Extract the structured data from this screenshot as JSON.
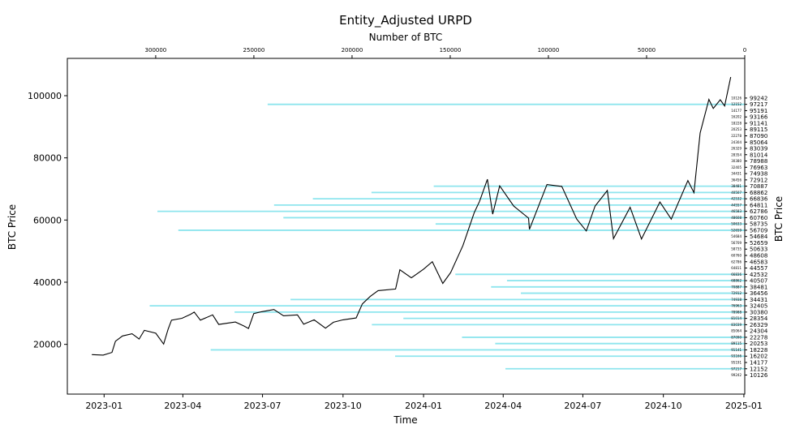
{
  "chart_data": {
    "type": "line",
    "title": "Entity_Adjusted URPD",
    "xlabel": "Time",
    "ylabel": "BTC Price",
    "ylabel_right": "BTC Price",
    "top_xlabel": "Number of BTC",
    "x_ticks": [
      "2023-01",
      "2023-04",
      "2023-07",
      "2023-10",
      "2024-01",
      "2024-04",
      "2024-07",
      "2024-10",
      "2025-01"
    ],
    "x_tick_dates": [
      "2023-01-01",
      "2023-04-01",
      "2023-07-01",
      "2023-10-01",
      "2024-01-01",
      "2024-04-01",
      "2024-07-01",
      "2024-10-01",
      "2025-01-01"
    ],
    "xlim": [
      "2022-11-20",
      "2025-01-02"
    ],
    "ylim": [
      4000,
      112000
    ],
    "y_ticks": [
      "20000",
      "40000",
      "60000",
      "80000",
      "100000"
    ],
    "y_tick_values": [
      20000,
      40000,
      60000,
      80000,
      100000
    ],
    "top_ticks": [
      "300000",
      "250000",
      "200000",
      "150000",
      "100000",
      "50000",
      "0"
    ],
    "top_tick_values": [
      300000,
      250000,
      200000,
      150000,
      100000,
      50000,
      0
    ],
    "top_xlim": [
      345000,
      0
    ],
    "price_series": {
      "name": "BTC Price",
      "color": "#000000",
      "points": [
        [
          "2022-12-18",
          16700
        ],
        [
          "2022-12-31",
          16550
        ],
        [
          "2023-01-10",
          17400
        ],
        [
          "2023-01-14",
          21000
        ],
        [
          "2023-01-22",
          22700
        ],
        [
          "2023-02-02",
          23400
        ],
        [
          "2023-02-10",
          21700
        ],
        [
          "2023-02-16",
          24500
        ],
        [
          "2023-03-01",
          23600
        ],
        [
          "2023-03-10",
          20100
        ],
        [
          "2023-03-15",
          24800
        ],
        [
          "2023-03-19",
          27800
        ],
        [
          "2023-03-31",
          28400
        ],
        [
          "2023-04-10",
          29700
        ],
        [
          "2023-04-14",
          30400
        ],
        [
          "2023-04-21",
          27800
        ],
        [
          "2023-05-05",
          29500
        ],
        [
          "2023-05-12",
          26400
        ],
        [
          "2023-05-31",
          27200
        ],
        [
          "2023-06-10",
          25900
        ],
        [
          "2023-06-15",
          25100
        ],
        [
          "2023-06-21",
          29900
        ],
        [
          "2023-06-30",
          30500
        ],
        [
          "2023-07-14",
          31200
        ],
        [
          "2023-07-25",
          29200
        ],
        [
          "2023-08-10",
          29500
        ],
        [
          "2023-08-17",
          26500
        ],
        [
          "2023-08-29",
          27900
        ],
        [
          "2023-09-11",
          25200
        ],
        [
          "2023-09-20",
          27100
        ],
        [
          "2023-10-01",
          27900
        ],
        [
          "2023-10-16",
          28500
        ],
        [
          "2023-10-23",
          33000
        ],
        [
          "2023-11-01",
          35400
        ],
        [
          "2023-11-10",
          37300
        ],
        [
          "2023-11-30",
          37800
        ],
        [
          "2023-12-05",
          44000
        ],
        [
          "2023-12-18",
          41400
        ],
        [
          "2024-01-01",
          44200
        ],
        [
          "2024-01-11",
          46600
        ],
        [
          "2024-01-23",
          39600
        ],
        [
          "2024-02-01",
          43100
        ],
        [
          "2024-02-15",
          51800
        ],
        [
          "2024-02-28",
          62400
        ],
        [
          "2024-03-05",
          66000
        ],
        [
          "2024-03-14",
          73100
        ],
        [
          "2024-03-20",
          61900
        ],
        [
          "2024-03-28",
          71000
        ],
        [
          "2024-04-13",
          64500
        ],
        [
          "2024-04-30",
          60600
        ],
        [
          "2024-05-01",
          57000
        ],
        [
          "2024-05-21",
          71400
        ],
        [
          "2024-06-07",
          70800
        ],
        [
          "2024-06-24",
          60300
        ],
        [
          "2024-07-05",
          56500
        ],
        [
          "2024-07-15",
          64500
        ],
        [
          "2024-07-29",
          69500
        ],
        [
          "2024-08-05",
          54000
        ],
        [
          "2024-08-24",
          64100
        ],
        [
          "2024-09-06",
          53900
        ],
        [
          "2024-09-27",
          65800
        ],
        [
          "2024-10-10",
          60300
        ],
        [
          "2024-10-29",
          72700
        ],
        [
          "2024-11-05",
          68800
        ],
        [
          "2024-11-12",
          88000
        ],
        [
          "2024-11-22",
          98800
        ],
        [
          "2024-11-27",
          95900
        ],
        [
          "2024-12-05",
          98700
        ],
        [
          "2024-12-10",
          96700
        ],
        [
          "2024-12-17",
          106000
        ]
      ]
    },
    "urpd": {
      "color": "#8ee5ee",
      "bins": [
        {
          "price": 10126,
          "btc": 0
        },
        {
          "price": 12152,
          "btc": 121882
        },
        {
          "price": 14177,
          "btc": 0
        },
        {
          "price": 16202,
          "btc": 178079
        },
        {
          "price": 18228,
          "btc": 272005
        },
        {
          "price": 20253,
          "btc": 127095
        },
        {
          "price": 22278,
          "btc": 144003
        },
        {
          "price": 24304,
          "btc": 0
        },
        {
          "price": 26329,
          "btc": 189916
        },
        {
          "price": 28354,
          "btc": 173872
        },
        {
          "price": 30380,
          "btc": 259825
        },
        {
          "price": 32405,
          "btc": 303063
        },
        {
          "price": 34431,
          "btc": 231342
        },
        {
          "price": 36456,
          "btc": 114027
        },
        {
          "price": 38481,
          "btc": 129198
        },
        {
          "price": 40507,
          "btc": 121090
        },
        {
          "price": 42532,
          "btc": 147388
        },
        {
          "price": 44557,
          "btc": 0
        },
        {
          "price": 46583,
          "btc": 0
        },
        {
          "price": 48608,
          "btc": 0
        },
        {
          "price": 50633,
          "btc": 0
        },
        {
          "price": 52659,
          "btc": 0
        },
        {
          "price": 54684,
          "btc": 0
        },
        {
          "price": 56709,
          "btc": 288476
        },
        {
          "price": 58735,
          "btc": 157455
        },
        {
          "price": 60760,
          "btc": 234984
        },
        {
          "price": 62786,
          "btc": 299122
        },
        {
          "price": 64811,
          "btc": 239721
        },
        {
          "price": 66836,
          "btc": 219958
        },
        {
          "price": 68862,
          "btc": 190111
        },
        {
          "price": 70887,
          "btc": 158398
        },
        {
          "price": 72912,
          "btc": 0
        },
        {
          "price": 74938,
          "btc": 0
        },
        {
          "price": 76963,
          "btc": 0
        },
        {
          "price": 78988,
          "btc": 0
        },
        {
          "price": 81014,
          "btc": 0
        },
        {
          "price": 83039,
          "btc": 0
        },
        {
          "price": 85064,
          "btc": 0
        },
        {
          "price": 87090,
          "btc": 0
        },
        {
          "price": 89115,
          "btc": 0
        },
        {
          "price": 91141,
          "btc": 0
        },
        {
          "price": 93166,
          "btc": 0
        },
        {
          "price": 95191,
          "btc": 0
        },
        {
          "price": 97217,
          "btc": 242990
        },
        {
          "price": 99242,
          "btc": 0
        }
      ]
    },
    "bar_annotations": [
      {
        "text": "99242",
        "btc": 99242
      },
      {
        "text": "97217",
        "btc": 97217
      },
      {
        "text": "95191",
        "btc": 95191
      },
      {
        "text": "93166",
        "btc": 93166
      },
      {
        "text": "91141",
        "btc": 91141
      },
      {
        "text": "89115",
        "btc": 89115
      },
      {
        "text": "87090",
        "btc": 87090
      },
      {
        "text": "85064",
        "btc": 85064
      },
      {
        "text": "83039",
        "btc": 83039
      },
      {
        "text": "81014",
        "btc": 81014
      },
      {
        "text": "78988",
        "btc": 78988
      },
      {
        "text": "76963",
        "btc": 76963
      },
      {
        "text": "74938",
        "btc": 74938
      },
      {
        "text": "72912",
        "btc": 72912
      },
      {
        "text": "70887",
        "btc": 70887
      },
      {
        "text": "68862",
        "btc": 68862
      },
      {
        "text": "66836",
        "btc": 66836
      },
      {
        "text": "64811",
        "btc": 64811
      },
      {
        "text": "62786",
        "btc": 62786
      },
      {
        "text": "60760",
        "btc": 60760
      },
      {
        "text": "58735",
        "btc": 58735
      },
      {
        "text": "56709",
        "btc": 56709
      },
      {
        "text": "54684",
        "btc": 54684
      },
      {
        "text": "52659",
        "btc": 52659
      },
      {
        "text": "50633",
        "btc": 50633
      },
      {
        "text": "48608",
        "btc": 48608
      },
      {
        "text": "46583",
        "btc": 46583
      },
      {
        "text": "44557",
        "btc": 44557
      },
      {
        "text": "42532",
        "btc": 42532
      },
      {
        "text": "40507",
        "btc": 40507
      },
      {
        "text": "38481",
        "btc": 38481
      },
      {
        "text": "36456",
        "btc": 36456
      },
      {
        "text": "34431",
        "btc": 34431
      },
      {
        "text": "32405",
        "btc": 32405
      },
      {
        "text": "30380",
        "btc": 30380
      },
      {
        "text": "28354",
        "btc": 28354
      },
      {
        "text": "26329",
        "btc": 26329
      },
      {
        "text": "24304",
        "btc": 24304
      },
      {
        "text": "22278",
        "btc": 22278
      },
      {
        "text": "20253",
        "btc": 20253
      },
      {
        "text": "18228",
        "btc": 18228
      },
      {
        "text": "16202",
        "btc": 16202
      },
      {
        "text": "14177",
        "btc": 14177
      },
      {
        "text": "12152",
        "btc": 12152
      },
      {
        "text": "10126",
        "btc": 10126
      }
    ]
  }
}
